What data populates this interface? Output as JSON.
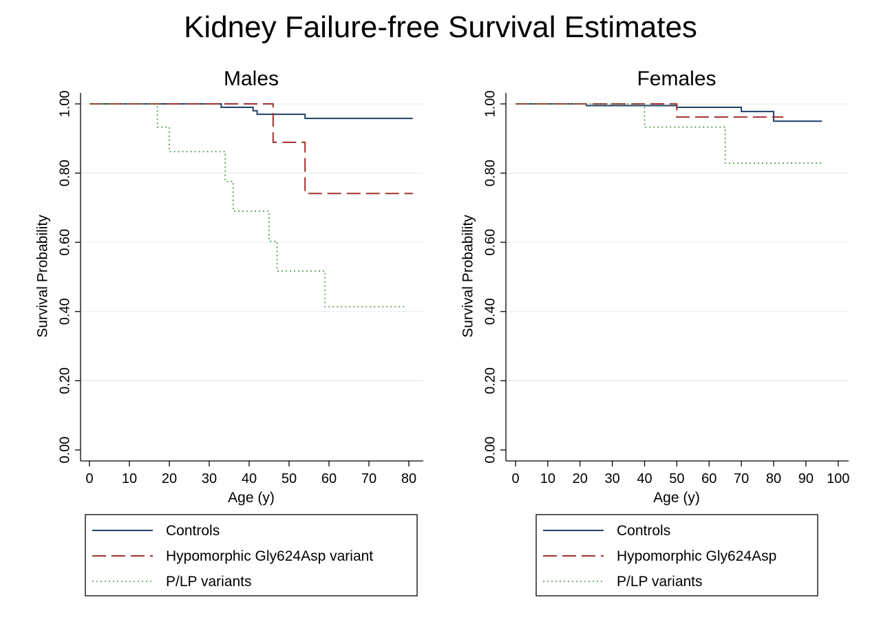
{
  "title": "Kidney Failure-free Survival Estimates",
  "colors": {
    "controls": "#1f3f66",
    "hypomorphic": "#a0302f",
    "plp": "#3e8f3a",
    "grid": "#e2eef0"
  },
  "chart_data": [
    {
      "type": "line",
      "step": true,
      "title": "Males",
      "xlabel": "Age (y)",
      "ylabel": "Survival Probability",
      "xlim": [
        0,
        82
      ],
      "ylim": [
        0,
        1.02
      ],
      "xticks": [
        0,
        10,
        20,
        30,
        40,
        50,
        60,
        70,
        80
      ],
      "xtick_labels": [
        "0",
        "10",
        "20",
        "30",
        "40",
        "50",
        "60",
        "70",
        "80"
      ],
      "yticks": [
        0,
        0.2,
        0.4,
        0.6,
        0.8,
        1.0
      ],
      "ytick_labels": [
        "0.00",
        "0.20",
        "0.40",
        "0.60",
        "0.80",
        "1.00"
      ],
      "grid": true,
      "legend_position": "bottom",
      "series": [
        {
          "name": "Controls",
          "style": "solid",
          "color_key": "controls",
          "x": [
            0,
            33,
            41,
            42,
            54,
            81
          ],
          "y": [
            1.0,
            0.99,
            0.98,
            0.97,
            0.958,
            0.958
          ]
        },
        {
          "name": "Hypomorphic Gly624Asp variant",
          "style": "dashed",
          "color_key": "hypomorphic",
          "x": [
            0,
            46,
            54,
            81
          ],
          "y": [
            1.0,
            0.889,
            0.741,
            0.741
          ]
        },
        {
          "name": "P/LP variants",
          "style": "dotted",
          "color_key": "plp",
          "x": [
            0,
            17,
            20,
            34,
            36,
            45,
            47,
            59,
            79
          ],
          "y": [
            1.0,
            0.933,
            0.862,
            0.776,
            0.69,
            0.603,
            0.517,
            0.414,
            0.414
          ]
        }
      ]
    },
    {
      "type": "line",
      "step": true,
      "title": "Females",
      "xlabel": "Age (y)",
      "ylabel": "Survival Probability",
      "xlim": [
        0,
        104
      ],
      "ylim": [
        0,
        1.02
      ],
      "xticks": [
        0,
        10,
        20,
        30,
        40,
        50,
        60,
        70,
        80,
        90,
        100
      ],
      "xtick_labels": [
        "0",
        "10",
        "20",
        "30",
        "40",
        "50",
        "60",
        "70",
        "80",
        "90",
        "100"
      ],
      "yticks": [
        0,
        0.2,
        0.4,
        0.6,
        0.8,
        1.0
      ],
      "ytick_labels": [
        "0.00",
        "0.20",
        "0.40",
        "0.60",
        "0.80",
        "1.00"
      ],
      "grid": true,
      "legend_position": "bottom",
      "series": [
        {
          "name": "Controls",
          "style": "solid",
          "color_key": "controls",
          "x": [
            0,
            22,
            50,
            70,
            80,
            95
          ],
          "y": [
            1.0,
            0.995,
            0.99,
            0.978,
            0.95,
            0.95
          ]
        },
        {
          "name": "Hypomorphic Gly624Asp",
          "style": "dashed",
          "color_key": "hypomorphic",
          "x": [
            0,
            50,
            83
          ],
          "y": [
            1.0,
            0.962,
            0.962
          ]
        },
        {
          "name": "P/LP variants",
          "style": "dotted",
          "color_key": "plp",
          "x": [
            0,
            40,
            65,
            95
          ],
          "y": [
            1.0,
            0.933,
            0.829,
            0.829
          ]
        }
      ]
    }
  ]
}
